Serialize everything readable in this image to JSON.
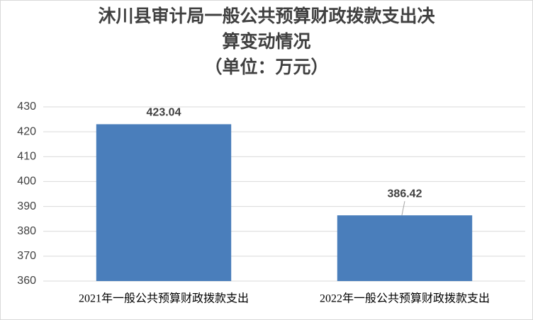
{
  "chart_data": {
    "type": "bar",
    "title": "沐川县审计局一般公共预算财政拨款支出决\n算变动情况\n（单位：万元）",
    "categories": [
      "2021年一般公共预算财政拨款支出",
      "2022年一般公共预算财政拨款支出"
    ],
    "values": [
      423.04,
      386.42
    ],
    "color": "#4a7ebb",
    "ylim": [
      360,
      430
    ],
    "yticks": [
      360,
      370,
      380,
      390,
      400,
      410,
      420,
      430
    ],
    "grid": true
  }
}
